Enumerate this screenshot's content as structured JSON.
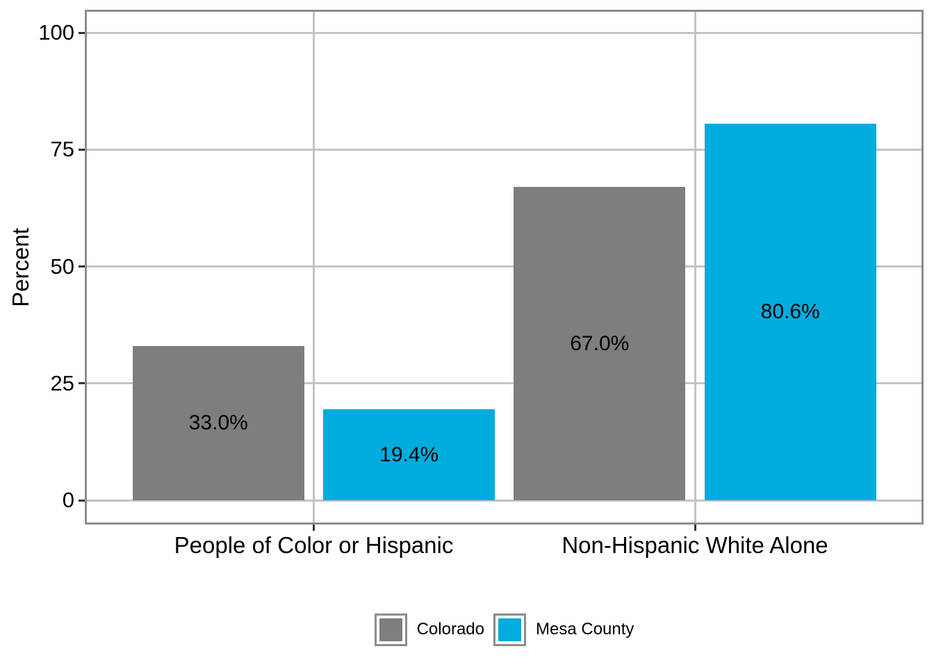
{
  "chart_data": {
    "type": "bar",
    "categories": [
      "People of Color or Hispanic",
      "Non-Hispanic White Alone"
    ],
    "series": [
      {
        "name": "Colorado",
        "color": "#7E7E7E",
        "values": [
          33.0,
          67.0
        ],
        "value_labels": [
          "33.0%",
          "67.0%"
        ]
      },
      {
        "name": "Mesa County",
        "color": "#00ACDE",
        "values": [
          19.4,
          80.6
        ],
        "value_labels": [
          "19.4%",
          "80.6%"
        ]
      }
    ],
    "title": "",
    "xlabel": "",
    "ylabel": "Percent",
    "ylim": [
      0,
      100
    ],
    "yticks": [
      0,
      25,
      50,
      75,
      100
    ],
    "grid": "major-only",
    "gridline_color": "#C4C4C4",
    "panel_border_color": "#8C8C8C",
    "tick_color": "#333333",
    "text_color": "#000000",
    "background_color": "#ffffff",
    "legend_position": "bottom",
    "bar_label_position": "center-of-bar"
  }
}
